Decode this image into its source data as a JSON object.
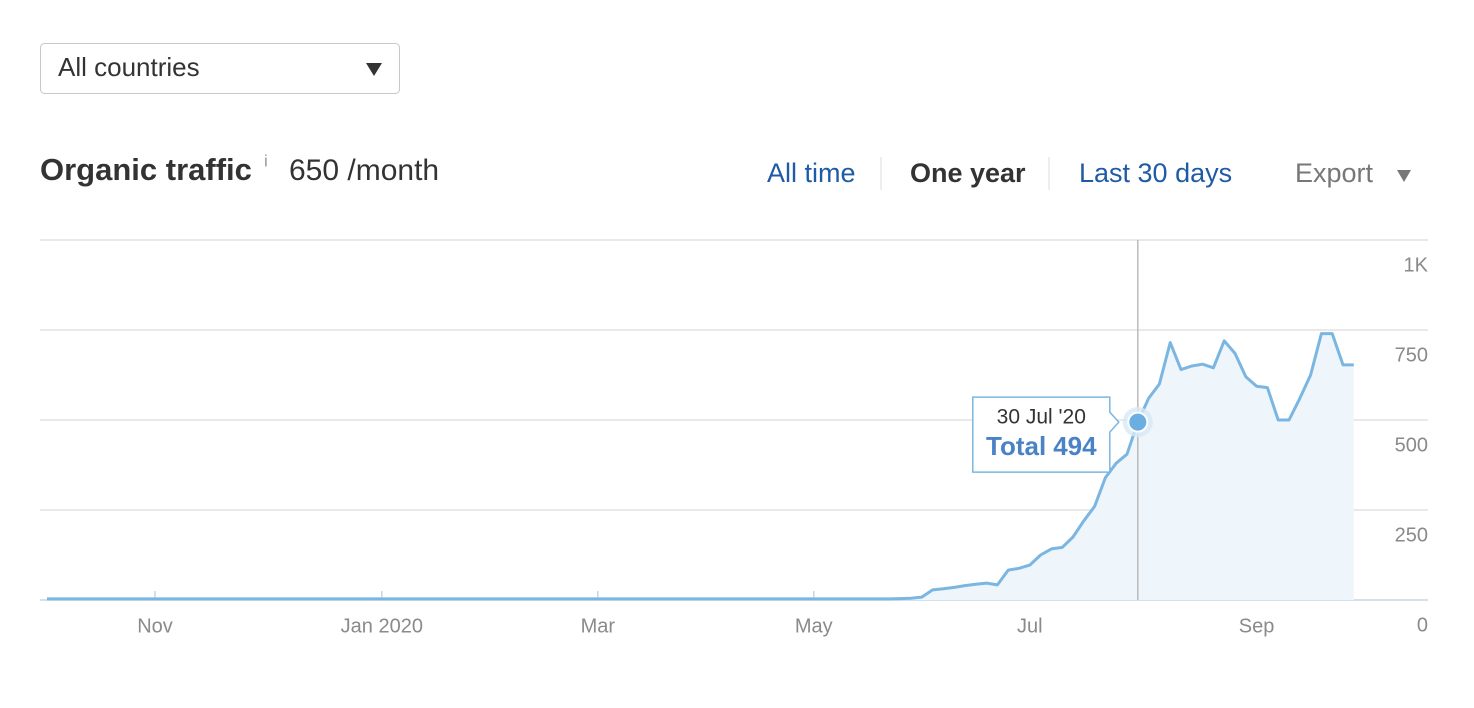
{
  "filter": {
    "country": "All countries"
  },
  "header": {
    "title": "Organic traffic",
    "info": "i",
    "summary": "650 /month"
  },
  "tabs": [
    "All time",
    "One year",
    "Last 30 days"
  ],
  "export": "Export",
  "chart_data": {
    "type": "line",
    "color": "#7bb6e2",
    "area_color": "#eef6fb",
    "grid": true,
    "ylim": [
      0,
      1000
    ],
    "yticks": [
      0,
      250,
      500,
      750,
      {
        "value": 1000,
        "label": "1K"
      }
    ],
    "categories": [
      null,
      null,
      null,
      null,
      null,
      null,
      null,
      null,
      null,
      null,
      "Nov",
      null,
      null,
      null,
      null,
      null,
      null,
      null,
      null,
      null,
      null,
      null,
      null,
      null,
      null,
      null,
      null,
      null,
      null,
      null,
      null,
      "Jan 2020",
      null,
      null,
      null,
      null,
      null,
      null,
      null,
      null,
      null,
      null,
      null,
      null,
      null,
      null,
      null,
      null,
      null,
      null,
      null,
      "Mar",
      null,
      null,
      null,
      null,
      null,
      null,
      null,
      null,
      null,
      null,
      null,
      null,
      null,
      null,
      null,
      null,
      null,
      null,
      null,
      "May",
      null,
      null,
      null,
      null,
      null,
      null,
      null,
      null,
      null,
      null,
      null,
      null,
      null,
      null,
      null,
      null,
      null,
      null,
      null,
      "Jul",
      null,
      null,
      null,
      null,
      null,
      null,
      null,
      null,
      null,
      null,
      null,
      null,
      null,
      null,
      null,
      null,
      null,
      null,
      null,
      null,
      "Sep",
      null,
      null,
      null,
      null,
      null,
      null,
      null,
      null,
      null
    ],
    "values": [
      3,
      3,
      3,
      3,
      3,
      3,
      3,
      3,
      3,
      3,
      3,
      3,
      3,
      3,
      3,
      3,
      3,
      3,
      3,
      3,
      3,
      3,
      3,
      3,
      3,
      3,
      3,
      3,
      3,
      3,
      3,
      3,
      3,
      3,
      3,
      3,
      3,
      3,
      3,
      3,
      3,
      3,
      3,
      3,
      3,
      3,
      3,
      3,
      3,
      3,
      3,
      3,
      3,
      3,
      3,
      3,
      3,
      3,
      3,
      3,
      3,
      3,
      3,
      3,
      3,
      3,
      3,
      3,
      3,
      3,
      3,
      3,
      3,
      3,
      3,
      3,
      3,
      3,
      3,
      4,
      5,
      8,
      28,
      31,
      35,
      40,
      44,
      47,
      42,
      83,
      88,
      97,
      125,
      142,
      146,
      175,
      220,
      260,
      340,
      380,
      405,
      494,
      560,
      600,
      715,
      640,
      650,
      655,
      645,
      720,
      685,
      620,
      594,
      590,
      500,
      500,
      560,
      625,
      740,
      740,
      653,
      653
    ],
    "tooltip": {
      "date": "30 Jul '20",
      "label": "Total",
      "value": 494
    }
  }
}
